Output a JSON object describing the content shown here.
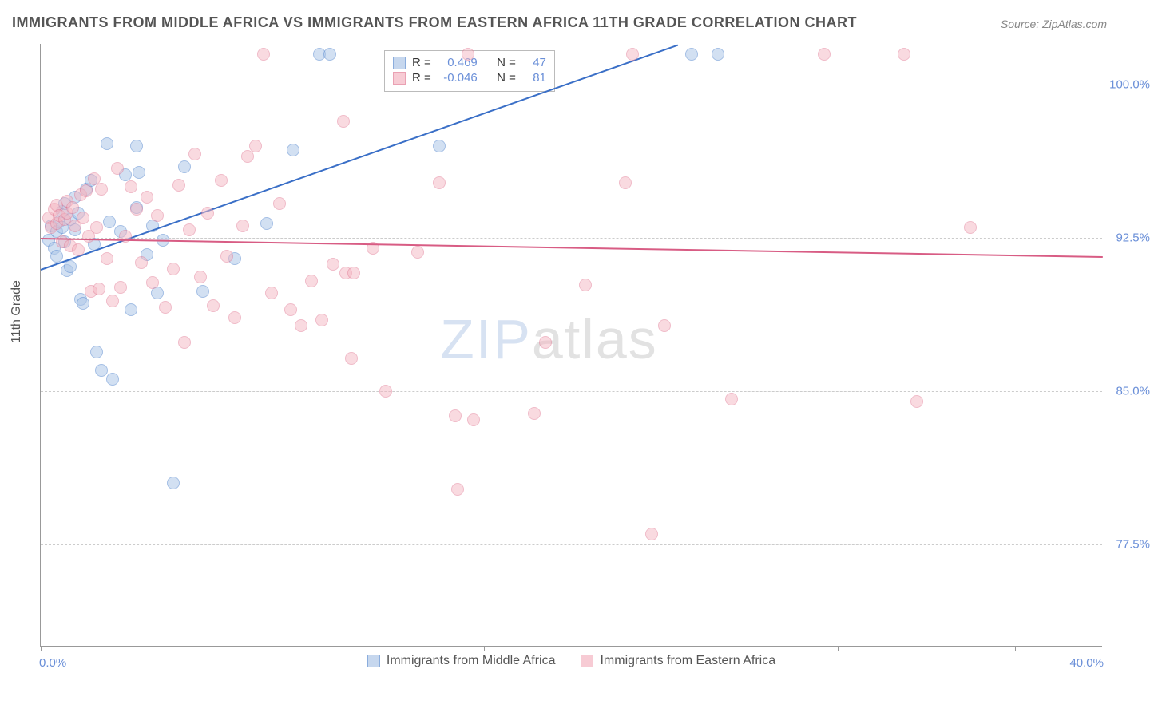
{
  "title": "IMMIGRANTS FROM MIDDLE AFRICA VS IMMIGRANTS FROM EASTERN AFRICA 11TH GRADE CORRELATION CHART",
  "source_label": "Source: ZipAtlas.com",
  "ylabel": "11th Grade",
  "watermark": {
    "part1": "ZIP",
    "part2": "atlas"
  },
  "chart": {
    "type": "scatter",
    "background_color": "#ffffff",
    "grid_color": "#cccccc",
    "axis_color": "#999999",
    "tick_label_color": "#6a8fd8",
    "marker_radius": 8,
    "marker_stroke_width": 1.2,
    "trend_line_width": 2,
    "xlim": [
      0.0,
      40.0
    ],
    "ylim": [
      72.5,
      102.0
    ],
    "xlim_labels": [
      "0.0%",
      "40.0%"
    ],
    "xtick_positions_pct": [
      0,
      8.3,
      25,
      41.7,
      58.3,
      75,
      91.7
    ],
    "y_gridlines": [
      {
        "value": 100.0,
        "label": "100.0%"
      },
      {
        "value": 92.5,
        "label": "92.5%"
      },
      {
        "value": 85.0,
        "label": "85.0%"
      },
      {
        "value": 77.5,
        "label": "77.5%"
      }
    ]
  },
  "series": [
    {
      "key": "middle",
      "label": "Immigrants from Middle Africa",
      "fill_color": "#aec7e8",
      "stroke_color": "#5b8bd0",
      "fill_opacity": 0.55,
      "trend_color": "#3a6fc7",
      "R": "0.469",
      "N": "47",
      "trend": {
        "x1": 0.0,
        "y1": 91.0,
        "x2": 24.0,
        "y2": 102.0
      },
      "points": [
        [
          0.3,
          92.4
        ],
        [
          0.4,
          93.1
        ],
        [
          0.5,
          92.0
        ],
        [
          0.6,
          92.8
        ],
        [
          0.6,
          91.6
        ],
        [
          0.7,
          93.3
        ],
        [
          0.8,
          93.0
        ],
        [
          0.8,
          93.8
        ],
        [
          0.9,
          92.3
        ],
        [
          0.9,
          94.2
        ],
        [
          1.0,
          90.9
        ],
        [
          1.1,
          91.1
        ],
        [
          1.1,
          93.4
        ],
        [
          1.3,
          94.5
        ],
        [
          1.3,
          92.9
        ],
        [
          1.4,
          93.7
        ],
        [
          1.5,
          89.5
        ],
        [
          1.6,
          89.3
        ],
        [
          1.7,
          94.9
        ],
        [
          1.9,
          95.3
        ],
        [
          2.0,
          92.2
        ],
        [
          2.1,
          86.9
        ],
        [
          2.3,
          86.0
        ],
        [
          2.5,
          97.1
        ],
        [
          2.6,
          93.3
        ],
        [
          2.7,
          85.6
        ],
        [
          3.0,
          92.8
        ],
        [
          3.2,
          95.6
        ],
        [
          3.4,
          89.0
        ],
        [
          3.6,
          94.0
        ],
        [
          3.6,
          97.0
        ],
        [
          3.7,
          95.7
        ],
        [
          4.0,
          91.7
        ],
        [
          4.2,
          93.1
        ],
        [
          4.4,
          89.8
        ],
        [
          4.6,
          92.4
        ],
        [
          5.0,
          80.5
        ],
        [
          5.4,
          96.0
        ],
        [
          6.1,
          89.9
        ],
        [
          7.3,
          91.5
        ],
        [
          8.5,
          93.2
        ],
        [
          9.5,
          96.8
        ],
        [
          10.5,
          101.5
        ],
        [
          10.9,
          101.5
        ],
        [
          15.0,
          97.0
        ],
        [
          24.5,
          101.5
        ],
        [
          25.5,
          101.5
        ]
      ]
    },
    {
      "key": "eastern",
      "label": "Immigrants from Eastern Africa",
      "fill_color": "#f4b6c2",
      "stroke_color": "#e27a94",
      "fill_opacity": 0.5,
      "trend_color": "#d85c84",
      "R": "-0.046",
      "N": "81",
      "trend": {
        "x1": 0.0,
        "y1": 92.5,
        "x2": 40.0,
        "y2": 91.6
      },
      "points": [
        [
          0.3,
          93.5
        ],
        [
          0.4,
          93.0
        ],
        [
          0.5,
          93.9
        ],
        [
          0.6,
          93.2
        ],
        [
          0.6,
          94.1
        ],
        [
          0.7,
          93.6
        ],
        [
          0.8,
          92.3
        ],
        [
          0.9,
          93.4
        ],
        [
          1.0,
          94.3
        ],
        [
          1.0,
          93.7
        ],
        [
          1.1,
          92.1
        ],
        [
          1.2,
          94.0
        ],
        [
          1.3,
          93.1
        ],
        [
          1.4,
          91.9
        ],
        [
          1.5,
          94.6
        ],
        [
          1.6,
          93.5
        ],
        [
          1.7,
          94.8
        ],
        [
          1.8,
          92.6
        ],
        [
          1.9,
          89.9
        ],
        [
          2.0,
          95.4
        ],
        [
          2.1,
          93.0
        ],
        [
          2.2,
          90.0
        ],
        [
          2.3,
          94.9
        ],
        [
          2.5,
          91.5
        ],
        [
          2.7,
          89.4
        ],
        [
          2.9,
          95.9
        ],
        [
          3.0,
          90.1
        ],
        [
          3.2,
          92.6
        ],
        [
          3.4,
          95.0
        ],
        [
          3.6,
          93.9
        ],
        [
          3.8,
          91.3
        ],
        [
          4.0,
          94.5
        ],
        [
          4.2,
          90.3
        ],
        [
          4.4,
          93.6
        ],
        [
          4.7,
          89.1
        ],
        [
          5.0,
          91.0
        ],
        [
          5.2,
          95.1
        ],
        [
          5.4,
          87.4
        ],
        [
          5.6,
          92.9
        ],
        [
          5.8,
          96.6
        ],
        [
          6.0,
          90.6
        ],
        [
          6.3,
          93.7
        ],
        [
          6.5,
          89.2
        ],
        [
          6.8,
          95.3
        ],
        [
          7.0,
          91.6
        ],
        [
          7.3,
          88.6
        ],
        [
          7.6,
          93.1
        ],
        [
          7.8,
          96.5
        ],
        [
          8.1,
          97.0
        ],
        [
          8.4,
          101.5
        ],
        [
          8.7,
          89.8
        ],
        [
          9.0,
          94.2
        ],
        [
          9.4,
          89.0
        ],
        [
          9.8,
          88.2
        ],
        [
          10.2,
          90.4
        ],
        [
          10.6,
          88.5
        ],
        [
          11.0,
          91.2
        ],
        [
          11.4,
          98.2
        ],
        [
          11.5,
          90.8
        ],
        [
          11.7,
          86.6
        ],
        [
          11.8,
          90.8
        ],
        [
          12.5,
          92.0
        ],
        [
          13.0,
          85.0
        ],
        [
          14.2,
          91.8
        ],
        [
          15.0,
          95.2
        ],
        [
          15.6,
          83.8
        ],
        [
          15.7,
          80.2
        ],
        [
          16.1,
          101.5
        ],
        [
          16.3,
          83.6
        ],
        [
          18.6,
          83.9
        ],
        [
          19.0,
          87.4
        ],
        [
          20.5,
          90.2
        ],
        [
          22.0,
          95.2
        ],
        [
          22.3,
          101.5
        ],
        [
          23.0,
          78.0
        ],
        [
          23.5,
          88.2
        ],
        [
          26.0,
          84.6
        ],
        [
          29.5,
          101.5
        ],
        [
          32.5,
          101.5
        ],
        [
          33.0,
          84.5
        ],
        [
          35.0,
          93.0
        ]
      ]
    }
  ],
  "stats_box_labels": {
    "R": "R  =",
    "N": "N  ="
  }
}
